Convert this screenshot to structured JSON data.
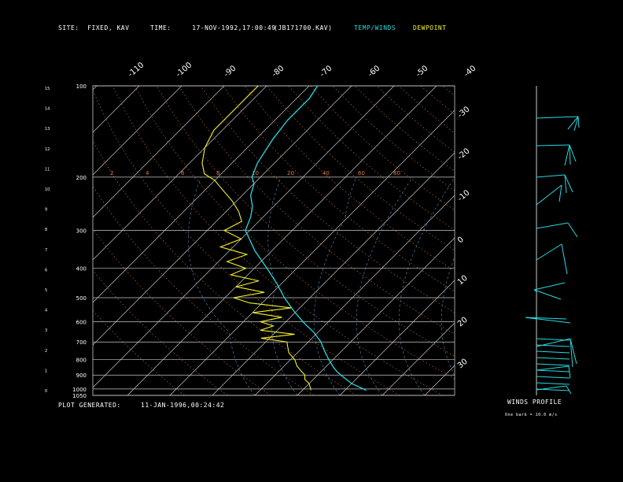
{
  "header": {
    "site_label": "SITE:",
    "site_value": "FIXED, KAV",
    "time_label": "TIME:",
    "time_value": "17-NOV-1992,17:00:49",
    "file": "(JB171700.KAV)",
    "legend_temp": "TEMP/WINDS",
    "legend_dew": "DEWPOINT"
  },
  "footer": {
    "plot_label": "PLOT GENERATED:",
    "plot_value": "11-JAN-1996,00:24:42",
    "winds_title": "WINDS PROFILE",
    "winds_note": "One barb = 10.0 m/s"
  },
  "colors": {
    "temp": "#26d9e0",
    "dewpoint": "#f5f02a",
    "grid": "#c8c8c8",
    "mixing": "#e07a3a",
    "moist": "#4a8fd0"
  },
  "chart_data": {
    "type": "line",
    "title": "",
    "pressure_levels": [
      100,
      200,
      300,
      400,
      500,
      600,
      700,
      800,
      900,
      1000,
      1050
    ],
    "pressure_labels": [
      "100",
      "200",
      "300",
      "400",
      "500",
      "600",
      "700",
      "800",
      "900",
      "1000",
      "1050"
    ],
    "height_km_labels": [
      "15",
      "14",
      "13",
      "12",
      "11",
      "10",
      "9",
      "8",
      "7",
      "6",
      "5",
      "4",
      "3",
      "2",
      "1",
      "0"
    ],
    "temp_top_labels": [
      "-110",
      "-100",
      "-90",
      "-80",
      "-70",
      "-60",
      "-50",
      "-40"
    ],
    "temp_right_labels": [
      "-30",
      "-20",
      "-10",
      "0",
      "10",
      "20",
      "30"
    ],
    "mixing_ratio_labels": [
      "2",
      "4",
      "6",
      "8",
      "10",
      "20",
      "40",
      "60",
      "80"
    ],
    "skew_deg": 45,
    "series": [
      {
        "key": "temperature",
        "p": [
          1010,
          960,
          920,
          880,
          850,
          800,
          750,
          700,
          650,
          620,
          600,
          550,
          500,
          450,
          400,
          350,
          300,
          270,
          250,
          230,
          210,
          200,
          180,
          150,
          130,
          110,
          100
        ],
        "t": [
          15,
          10,
          7,
          4,
          2,
          -1,
          -4,
          -7,
          -11,
          -14,
          -16,
          -21,
          -26,
          -31,
          -37,
          -44,
          -51,
          -53,
          -55,
          -58,
          -60,
          -62,
          -64,
          -66,
          -67,
          -67,
          -68
        ]
      },
      {
        "key": "dewpoint",
        "p": [
          1010,
          960,
          930,
          900,
          870,
          840,
          800,
          760,
          720,
          700,
          680,
          660,
          640,
          620,
          600,
          580,
          560,
          540,
          520,
          500,
          480,
          460,
          440,
          420,
          400,
          380,
          360,
          340,
          320,
          300,
          280,
          260,
          240,
          220,
          205,
          195,
          180,
          160,
          140,
          120,
          105,
          100
        ],
        "td": [
          2,
          0,
          -2,
          -3,
          -5,
          -7,
          -9,
          -12,
          -14,
          -15,
          -22,
          -15,
          -24,
          -22,
          -26,
          -22,
          -30,
          -22,
          -33,
          -38,
          -32,
          -40,
          -36,
          -44,
          -42,
          -48,
          -45,
          -53,
          -50,
          -56,
          -54,
          -57,
          -61,
          -66,
          -70,
          -74,
          -77,
          -80,
          -82,
          -82,
          -82,
          -82
        ]
      }
    ]
  }
}
